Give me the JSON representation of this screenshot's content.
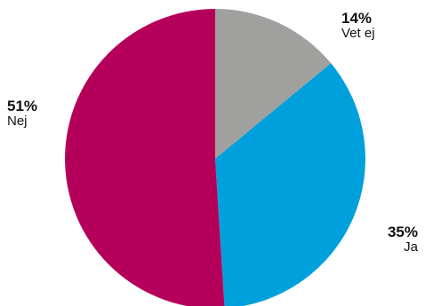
{
  "chart_data": {
    "type": "pie",
    "slices": [
      {
        "label": "Vet ej",
        "value": 14,
        "value_label": "14%",
        "color": "#a0a09e"
      },
      {
        "label": "Ja",
        "value": 35,
        "value_label": "35%",
        "color": "#00a0dc"
      },
      {
        "label": "Nej",
        "value": 51,
        "value_label": "51%",
        "color": "#b5005b"
      }
    ],
    "start_angle": "12 o'clock",
    "direction": "clockwise",
    "legend": "none"
  }
}
